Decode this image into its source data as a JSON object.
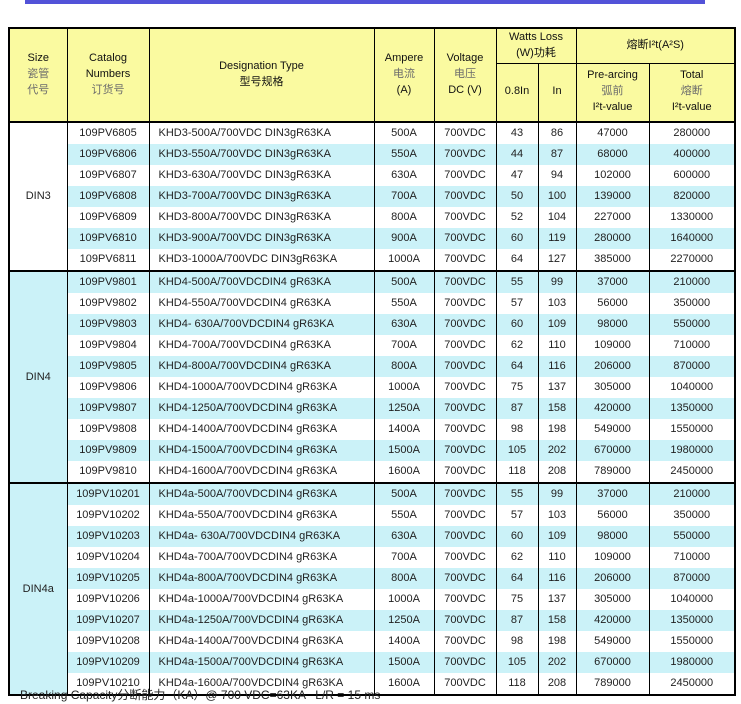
{
  "colors": {
    "top_bar": "#5252d8",
    "header_bg": "#fafaa0",
    "alt_row_bg": "#cbf2f8",
    "border": "#000000"
  },
  "header": {
    "size": {
      "en": "Size",
      "zh1": "瓷管",
      "zh2": "代号"
    },
    "catalog": {
      "en1": "Catalog",
      "en2": "Numbers",
      "zh": "订货号"
    },
    "designation": {
      "en": "Designation Type",
      "zh": "型号规格"
    },
    "ampere": {
      "en": "Ampere",
      "zh": "电流",
      "unit": "(A)"
    },
    "voltage": {
      "en": "Voltage",
      "zh": "电压",
      "unit": "DC (V)"
    },
    "watts_loss": {
      "en": "Watts Loss",
      "zh": "(W)功耗",
      "sub_08in": "0.8In",
      "sub_in": "In"
    },
    "i2t": {
      "title": "熔断I²t(A²S)",
      "pre_arcing": {
        "en": "Pre-arcing",
        "zh": "弧前",
        "val": "I²t-value"
      },
      "total": {
        "en": "Total",
        "zh": "熔断",
        "val": "I²t-value"
      }
    }
  },
  "groups": [
    {
      "size": "DIN3",
      "rows": [
        [
          "109PV6805",
          "KHD3-500A/700VDC DIN3gR63KA",
          "500A",
          "700VDC",
          "43",
          "86",
          "47000",
          "280000"
        ],
        [
          "109PV6806",
          "KHD3-550A/700VDC DIN3gR63KA",
          "550A",
          "700VDC",
          "44",
          "87",
          "68000",
          "400000"
        ],
        [
          "109PV6807",
          "KHD3-630A/700VDC DIN3gR63KA",
          "630A",
          "700VDC",
          "47",
          "94",
          "102000",
          "600000"
        ],
        [
          "109PV6808",
          "KHD3-700A/700VDC DIN3gR63KA",
          "700A",
          "700VDC",
          "50",
          "100",
          "139000",
          "820000"
        ],
        [
          "109PV6809",
          "KHD3-800A/700VDC DIN3gR63KA",
          "800A",
          "700VDC",
          "52",
          "104",
          "227000",
          "1330000"
        ],
        [
          "109PV6810",
          "KHD3-900A/700VDC DIN3gR63KA",
          "900A",
          "700VDC",
          "60",
          "119",
          "280000",
          "1640000"
        ],
        [
          "109PV6811",
          "KHD3-1000A/700VDC DIN3gR63KA",
          "1000A",
          "700VDC",
          "64",
          "127",
          "385000",
          "2270000"
        ]
      ]
    },
    {
      "size": "DIN4",
      "rows": [
        [
          "109PV9801",
          "KHD4-500A/700VDCDIN4 gR63KA",
          "500A",
          "700VDC",
          "55",
          "99",
          "37000",
          "210000"
        ],
        [
          "109PV9802",
          "KHD4-550A/700VDCDIN4 gR63KA",
          "550A",
          "700VDC",
          "57",
          "103",
          "56000",
          "350000"
        ],
        [
          "109PV9803",
          "KHD4- 630A/700VDCDIN4 gR63KA",
          "630A",
          "700VDC",
          "60",
          "109",
          "98000",
          "550000"
        ],
        [
          "109PV9804",
          "KHD4-700A/700VDCDIN4 gR63KA",
          "700A",
          "700VDC",
          "62",
          "110",
          "109000",
          "710000"
        ],
        [
          "109PV9805",
          "KHD4-800A/700VDCDIN4 gR63KA",
          "800A",
          "700VDC",
          "64",
          "116",
          "206000",
          "870000"
        ],
        [
          "109PV9806",
          "KHD4-1000A/700VDCDIN4 gR63KA",
          "1000A",
          "700VDC",
          "75",
          "137",
          "305000",
          "1040000"
        ],
        [
          "109PV9807",
          "KHD4-1250A/700VDCDIN4 gR63KA",
          "1250A",
          "700VDC",
          "87",
          "158",
          "420000",
          "1350000"
        ],
        [
          "109PV9808",
          "KHD4-1400A/700VDCDIN4 gR63KA",
          "1400A",
          "700VDC",
          "98",
          "198",
          "549000",
          "1550000"
        ],
        [
          "109PV9809",
          "KHD4-1500A/700VDCDIN4 gR63KA",
          "1500A",
          "700VDC",
          "105",
          "202",
          "670000",
          "1980000"
        ],
        [
          "109PV9810",
          "KHD4-1600A/700VDCDIN4 gR63KA",
          "1600A",
          "700VDC",
          "118",
          "208",
          "789000",
          "2450000"
        ]
      ]
    },
    {
      "size": "DIN4a",
      "rows": [
        [
          "109PV10201",
          "KHD4a-500A/700VDCDIN4 gR63KA",
          "500A",
          "700VDC",
          "55",
          "99",
          "37000",
          "210000"
        ],
        [
          "109PV10202",
          "KHD4a-550A/700VDCDIN4 gR63KA",
          "550A",
          "700VDC",
          "57",
          "103",
          "56000",
          "350000"
        ],
        [
          "109PV10203",
          "KHD4a- 630A/700VDCDIN4 gR63KA",
          "630A",
          "700VDC",
          "60",
          "109",
          "98000",
          "550000"
        ],
        [
          "109PV10204",
          "KHD4a-700A/700VDCDIN4 gR63KA",
          "700A",
          "700VDC",
          "62",
          "110",
          "109000",
          "710000"
        ],
        [
          "109PV10205",
          "KHD4a-800A/700VDCDIN4 gR63KA",
          "800A",
          "700VDC",
          "64",
          "116",
          "206000",
          "870000"
        ],
        [
          "109PV10206",
          "KHD4a-1000A/700VDCDIN4 gR63KA",
          "1000A",
          "700VDC",
          "75",
          "137",
          "305000",
          "1040000"
        ],
        [
          "109PV10207",
          "KHD4a-1250A/700VDCDIN4 gR63KA",
          "1250A",
          "700VDC",
          "87",
          "158",
          "420000",
          "1350000"
        ],
        [
          "109PV10208",
          "KHD4a-1400A/700VDCDIN4 gR63KA",
          "1400A",
          "700VDC",
          "98",
          "198",
          "549000",
          "1550000"
        ],
        [
          "109PV10209",
          "KHD4a-1500A/700VDCDIN4 gR63KA",
          "1500A",
          "700VDC",
          "105",
          "202",
          "670000",
          "1980000"
        ],
        [
          "109PV10210",
          "KHD4a-1600A/700VDCDIN4 gR63KA",
          "1600A",
          "700VDC",
          "118",
          "208",
          "789000",
          "2450000"
        ]
      ]
    }
  ],
  "footer": {
    "note": "Breaking Capacity分断能力（KA）@ 700 VDC=63KA   L/R = 15 ms"
  }
}
